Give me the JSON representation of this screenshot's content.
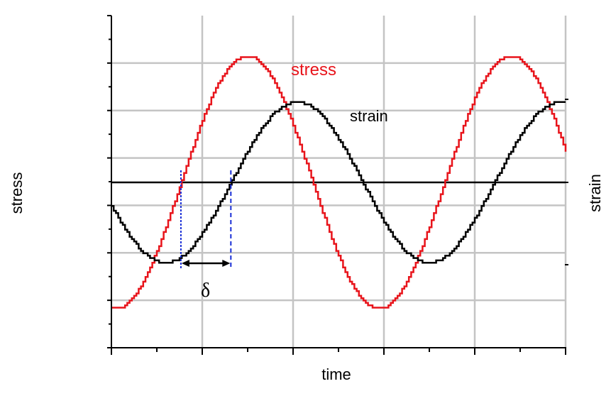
{
  "chart_data": {
    "type": "line",
    "title": "",
    "xlabel": "time",
    "ylabel": "stress",
    "y2label": "strain",
    "xlim": [
      0,
      10
    ],
    "ylim": [
      -5.5,
      5.5
    ],
    "grid": true,
    "series": [
      {
        "name": "stress",
        "color": "#e8141b",
        "amplitude": 5.35,
        "period": 5.8,
        "x": [
          0,
          0.5,
          1,
          1.5,
          2,
          2.5,
          3,
          3.5,
          4,
          4.5,
          5,
          5.5,
          6,
          6.5,
          7,
          7.5,
          8,
          8.5,
          9,
          9.5,
          10
        ],
        "y": [
          -5.35,
          -4.72,
          -3.0,
          -0.53,
          2.03,
          4.1,
          5.27,
          5.21,
          3.95,
          1.82,
          -0.76,
          -3.2,
          -4.82,
          -5.33,
          -4.6,
          -2.8,
          -0.3,
          2.25,
          4.24,
          5.3,
          4.26
        ]
      },
      {
        "name": "strain",
        "color": "#000000",
        "amplitude": 3.4,
        "period": 5.8,
        "x": [
          0,
          0.5,
          1,
          1.5,
          2,
          2.5,
          3,
          3.5,
          4,
          4.5,
          5,
          5.5,
          6,
          6.5,
          7,
          7.5,
          8,
          8.5,
          9,
          9.5,
          10
        ],
        "y": [
          -1.96,
          -2.98,
          -3.39,
          -2.85,
          -1.56,
          0.16,
          1.84,
          3.03,
          3.4,
          2.84,
          1.55,
          -0.18,
          -1.84,
          -3.03,
          -3.4,
          -2.88,
          -1.59,
          0.17,
          1.85,
          3.04,
          3.32
        ]
      }
    ],
    "annotations": [
      {
        "text": "stress",
        "color": "#e8141b"
      },
      {
        "text": "strain",
        "color": "#000000"
      },
      {
        "text": "δ",
        "meaning": "phase lag between stress and strain zero crossings"
      }
    ],
    "phase_markers": {
      "stress_zero_crossing_x": 1.53,
      "strain_zero_crossing_x": 2.63
    }
  }
}
